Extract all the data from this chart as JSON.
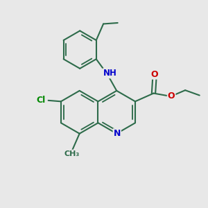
{
  "background_color": "#e8e8e8",
  "bond_color": "#2d6b4a",
  "bond_width": 1.5,
  "atom_colors": {
    "N": "#0000cc",
    "O": "#cc0000",
    "Cl": "#008800",
    "C": "#2d6b4a",
    "H": "#888888"
  },
  "figsize": [
    3.0,
    3.0
  ],
  "dpi": 100
}
